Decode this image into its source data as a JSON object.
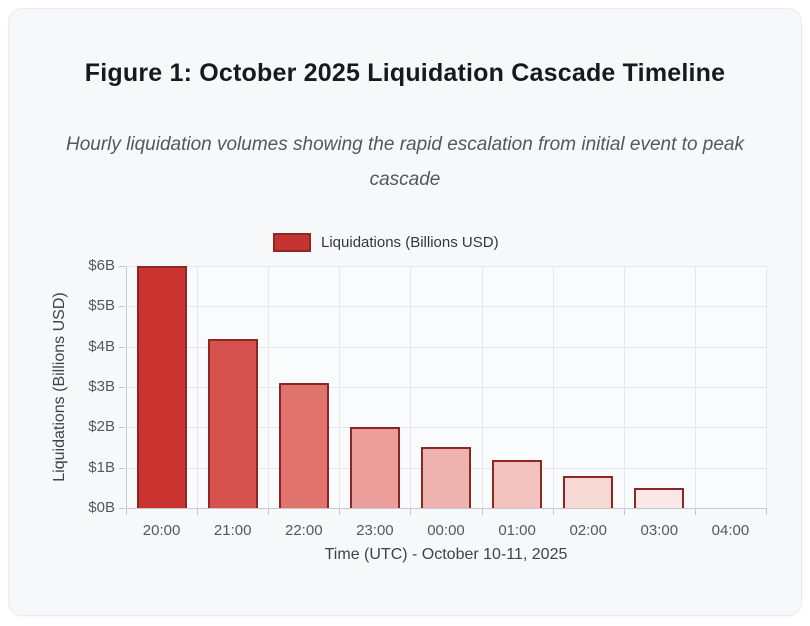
{
  "figure": {
    "title": "Figure 1: October 2025 Liquidation Cascade Timeline",
    "subtitle": "Hourly liquidation volumes showing the rapid escalation from initial event to peak cascade"
  },
  "legend": {
    "label": "Liquidations (Billions USD)",
    "swatch_fill": "#c43431",
    "swatch_border": "#8b2824"
  },
  "chart_data": {
    "type": "bar",
    "title": "Figure 1: October 2025 Liquidation Cascade Timeline",
    "subtitle": "Hourly liquidation volumes showing the rapid escalation from initial event to peak cascade",
    "categories": [
      "20:00",
      "21:00",
      "22:00",
      "23:00",
      "00:00",
      "01:00",
      "02:00",
      "03:00",
      "04:00"
    ],
    "values": [
      6.0,
      4.2,
      3.1,
      2.0,
      1.5,
      1.2,
      0.8,
      0.5,
      0
    ],
    "series_name": "Liquidations (Billions USD)",
    "xlabel": "Time (UTC) - October 10-11, 2025",
    "ylabel": "Liquidations (Billions USD)",
    "ylim": [
      0,
      6
    ],
    "ytick_labels": [
      "$0B",
      "$1B",
      "$2B",
      "$3B",
      "$4B",
      "$5B",
      "$6B"
    ],
    "grid": true,
    "legend_position": "top",
    "bar_colors": [
      "#cb3330",
      "#d5524f",
      "#e1736f",
      "#eb9e9a",
      "#efb3af",
      "#f2c2be",
      "#f6d8d5",
      "#f9e8e6",
      "#fbf1f0"
    ],
    "bar_border_color": "#8b2824",
    "style": {
      "grid_color": "#e5e8ec",
      "axis_color": "#c6cad0",
      "tick_color": "#c3c7cc",
      "tick_label_color": "#55595e",
      "axis_title_color": "#3f4247",
      "plot_background": "#fafbfd"
    }
  }
}
